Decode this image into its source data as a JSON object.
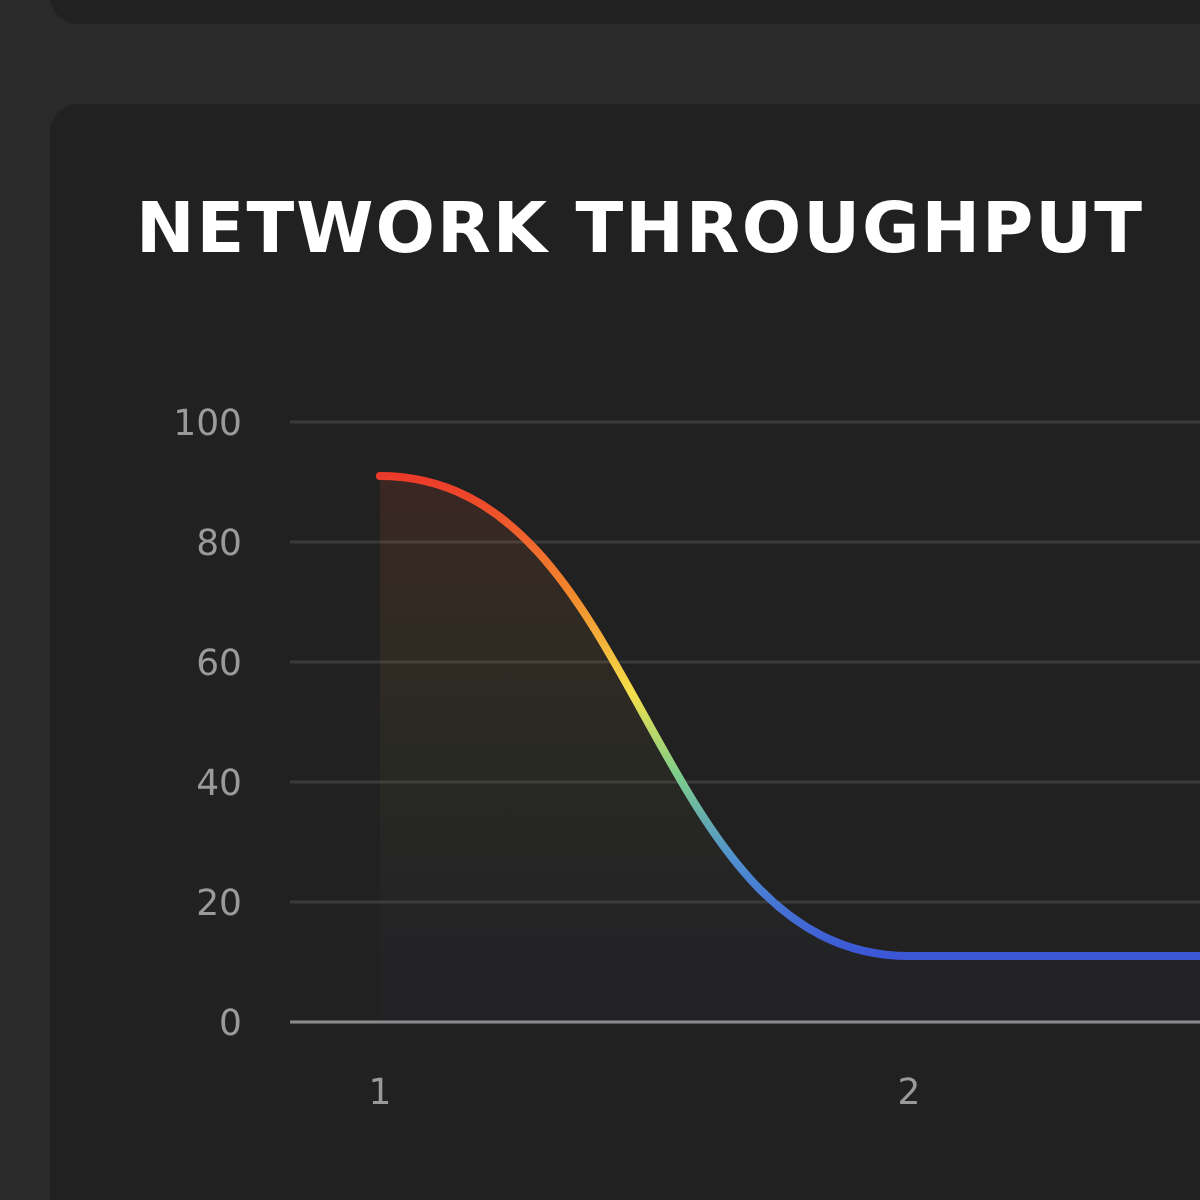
{
  "chart_data": {
    "type": "area",
    "title": "NETWORK THROUGHPUT",
    "x": [
      1,
      2,
      2.55
    ],
    "series": [
      {
        "values": [
          91,
          11,
          11
        ]
      }
    ],
    "xlim": [
      0.83,
      2.55
    ],
    "xticks": [
      1,
      2
    ],
    "ylim": [
      0,
      100
    ],
    "yticks": [
      0,
      20,
      40,
      60,
      80,
      100
    ],
    "grid": "y",
    "legend": false,
    "marker": "none",
    "line_style": "solid"
  }
}
